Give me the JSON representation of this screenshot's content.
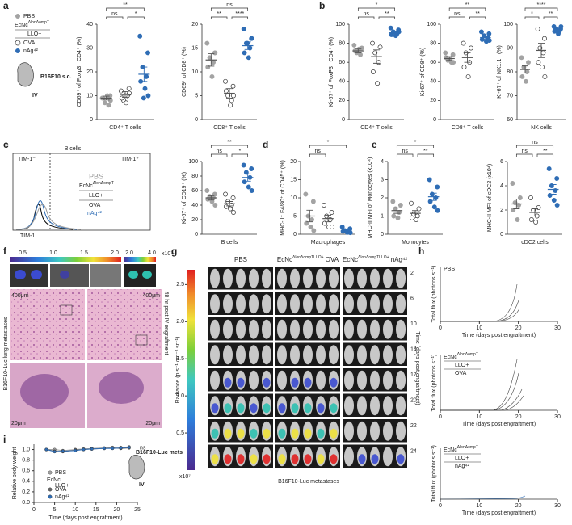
{
  "panel_labels": [
    "a",
    "b",
    "c",
    "d",
    "e",
    "f",
    "g",
    "h",
    "i"
  ],
  "groups": [
    {
      "name": "PBS",
      "color": "#a3a3a3"
    },
    {
      "name": "OVA",
      "color": "#ffffff"
    },
    {
      "name": "nAg⁴²",
      "color": "#2f6db5"
    }
  ],
  "legend": {
    "strain": "EcNc",
    "strain_sup": "ΔlonΔompT",
    "plasmid": "LLO+",
    "tumor": "B16F10 s.c.",
    "route": "IV"
  },
  "chart_data": [
    {
      "type": "dot",
      "ylabel": "CD69⁺ of Foxp3⁻ CD4⁺ (%)",
      "category": "CD4⁺ T cells",
      "ylim": [
        0,
        40
      ],
      "yticks": [
        0,
        10,
        20,
        30,
        40
      ],
      "significance": {
        "all": "**",
        "left": "ns",
        "right": "*"
      },
      "series": [
        {
          "values": [
            9,
            10,
            7,
            6,
            9,
            10,
            8
          ],
          "mean": 9,
          "sem": 0.8
        },
        {
          "values": [
            12,
            13,
            8,
            10,
            9,
            7,
            11,
            10
          ],
          "mean": 10.5,
          "sem": 1.2
        },
        {
          "values": [
            35,
            28,
            22,
            18,
            16,
            13,
            10,
            9
          ],
          "mean": 19,
          "sem": 3
        }
      ]
    },
    {
      "type": "dot",
      "ylabel": "CD69⁺ of CD8⁺ (%)",
      "category": "CD8⁺ T cells",
      "ylim": [
        0,
        20
      ],
      "yticks": [
        0,
        5,
        10,
        15,
        20
      ],
      "significance": {
        "all": "ns",
        "left": "**",
        "right": "****"
      },
      "series": [
        {
          "values": [
            16,
            14,
            13,
            12,
            11,
            9,
            14
          ],
          "mean": 12.5,
          "sem": 1.3
        },
        {
          "values": [
            8,
            7,
            5,
            4,
            6,
            3,
            5
          ],
          "mean": 5.5,
          "sem": 1
        },
        {
          "values": [
            19,
            17,
            16,
            15,
            14,
            13,
            17,
            16
          ],
          "mean": 15.5,
          "sem": 0.8
        }
      ]
    },
    {
      "type": "dot",
      "ylabel": "Ki-67⁺ of FoxP3⁻ CD4⁺ (%)",
      "category": "CD4⁺ T cells",
      "ylim": [
        0,
        100
      ],
      "yticks": [
        0,
        20,
        40,
        60,
        80,
        100
      ],
      "significance": {
        "all": "*",
        "left": "ns",
        "right": "**"
      },
      "series": [
        {
          "values": [
            78,
            75,
            70,
            68,
            72,
            74
          ],
          "mean": 72,
          "sem": 2
        },
        {
          "values": [
            80,
            76,
            70,
            60,
            50,
            38
          ],
          "mean": 66,
          "sem": 7
        },
        {
          "values": [
            96,
            94,
            92,
            90,
            89,
            88,
            92
          ],
          "mean": 91,
          "sem": 1
        }
      ]
    },
    {
      "type": "dot",
      "ylabel": "Ki-67⁺ of CD8⁺ (%)",
      "category": "CD8⁺ T cells",
      "ylim": [
        0,
        100
      ],
      "yticks": [
        0,
        20,
        40,
        60,
        80,
        100
      ],
      "significance": {
        "all": "**",
        "left": "ns",
        "right": "**"
      },
      "series": [
        {
          "values": [
            70,
            68,
            62,
            60,
            65,
            63,
            60
          ],
          "mean": 64,
          "sem": 2
        },
        {
          "values": [
            80,
            75,
            70,
            60,
            55,
            45
          ],
          "mean": 65,
          "sem": 5
        },
        {
          "values": [
            92,
            90,
            88,
            86,
            84,
            82,
            83
          ],
          "mean": 86,
          "sem": 1.5
        }
      ]
    },
    {
      "type": "dot",
      "ylabel": "Ki-67⁺ of NK1.1⁺ (%)",
      "category": "NK cells",
      "ylim": [
        60,
        100
      ],
      "yticks": [
        60,
        70,
        80,
        90,
        100
      ],
      "significance": {
        "all": "****",
        "left": "*",
        "right": "**"
      },
      "series": [
        {
          "values": [
            86,
            84,
            82,
            80,
            78,
            76
          ],
          "mean": 81,
          "sem": 1.5
        },
        {
          "values": [
            98,
            94,
            90,
            88,
            84,
            82,
            78
          ],
          "mean": 89,
          "sem": 3
        },
        {
          "values": [
            99,
            98,
            98,
            97,
            97,
            96,
            99
          ],
          "mean": 98,
          "sem": 0.4
        }
      ]
    },
    {
      "type": "dot",
      "ylabel": "Ki-67⁺ of CD19⁺ (%)",
      "category": "B cells",
      "ylim": [
        0,
        100
      ],
      "yticks": [
        0,
        20,
        40,
        60,
        80,
        100
      ],
      "significance": {
        "all": "**",
        "left": "ns",
        "right": "*"
      },
      "series": [
        {
          "values": [
            60,
            55,
            52,
            50,
            48,
            45,
            40
          ],
          "mean": 50,
          "sem": 3
        },
        {
          "values": [
            55,
            50,
            45,
            40,
            38,
            35,
            30
          ],
          "mean": 42,
          "sem": 3
        },
        {
          "values": [
            95,
            90,
            85,
            78,
            72,
            65,
            60
          ],
          "mean": 78,
          "sem": 5
        }
      ]
    },
    {
      "type": "dot",
      "ylabel": "MHC-II⁺ F4/80⁺ of CD45⁺ (%)",
      "category": "Macrophages",
      "ylim": [
        0,
        20
      ],
      "yticks": [
        0,
        5,
        10,
        15,
        20
      ],
      "significance": {
        "all": "*",
        "left": "ns"
      },
      "series": [
        {
          "values": [
            11,
            9,
            5,
            4,
            3,
            2,
            1
          ],
          "mean": 5,
          "sem": 1.6
        },
        {
          "values": [
            8,
            6,
            5,
            4,
            3,
            2,
            2
          ],
          "mean": 4.3,
          "sem": 0.9
        },
        {
          "values": [
            2,
            1.5,
            1,
            1,
            0.8,
            0.5,
            0.4
          ],
          "mean": 1,
          "sem": 0.2
        }
      ]
    },
    {
      "type": "dot",
      "ylabel": "MHC-II MFI of Monocytes (x10⁴)",
      "category": "Monocytes",
      "ylim": [
        0,
        4
      ],
      "yticks": [
        0,
        1,
        2,
        3,
        4
      ],
      "significance": {
        "all": "*",
        "left": "ns",
        "right": "**"
      },
      "series": [
        {
          "values": [
            1.8,
            1.6,
            1.4,
            1.2,
            1.0,
            0.9
          ],
          "mean": 1.3,
          "sem": 0.15
        },
        {
          "values": [
            1.7,
            1.4,
            1.1,
            1.0,
            0.9,
            0.8
          ],
          "mean": 1.15,
          "sem": 0.15
        },
        {
          "values": [
            3.0,
            2.6,
            2.2,
            2.0,
            1.8,
            1.5,
            1.3
          ],
          "mean": 2.06,
          "sem": 0.2
        }
      ]
    },
    {
      "type": "dot",
      "ylabel": "MHC-II MFI of cDC2 (x10⁴)",
      "category": "cDC2 cells",
      "ylim": [
        0,
        6
      ],
      "yticks": [
        0,
        2,
        4,
        6
      ],
      "significance": {
        "all": "ns",
        "left": "ns",
        "right": "**"
      },
      "series": [
        {
          "values": [
            4.2,
            3.0,
            2.6,
            2.4,
            2.0,
            1.2
          ],
          "mean": 2.5,
          "sem": 0.4
        },
        {
          "values": [
            3.0,
            2.2,
            2.0,
            1.5,
            1.2,
            1.0
          ],
          "mean": 1.8,
          "sem": 0.3
        },
        {
          "values": [
            5.4,
            4.6,
            4.0,
            3.6,
            3.2,
            2.8,
            2.4
          ],
          "mean": 3.7,
          "sem": 0.4
        }
      ]
    },
    {
      "type": "line",
      "xlabel": "Time (days post engraftment)",
      "ylabel": "Relative body weight",
      "annotation": "ns",
      "xlim": [
        0,
        25
      ],
      "xticks": [
        0,
        5,
        10,
        15,
        20,
        25
      ],
      "ylim": [
        0,
        1.1
      ],
      "yticks": [
        {
          "value": 0,
          "label": "0.0"
        },
        {
          "value": 0.2,
          "label": "0.2"
        },
        {
          "value": 0.4,
          "label": "0.4"
        },
        {
          "value": 0.6,
          "label": "0.6"
        },
        {
          "value": 0.8,
          "label": "0.8"
        },
        {
          "value": 1,
          "label": "1.0"
        }
      ],
      "x": [
        3,
        5,
        7,
        10,
        12,
        14,
        17,
        19,
        21,
        23
      ],
      "series": [
        {
          "name": "PBS",
          "color": "#a3a3a3",
          "values": [
            1,
            1,
            0.98,
            1,
            1.01,
            1.02,
            1.03,
            1.04,
            1.04,
            1.05
          ]
        },
        {
          "name": "OVA",
          "color": "#666666",
          "values": [
            1,
            0.97,
            0.96,
            0.99,
            1,
            1.01,
            1.02,
            1.03,
            1.02,
            1.03
          ]
        },
        {
          "name": "nAg⁴²",
          "color": "#2f6db5",
          "values": [
            1,
            0.96,
            0.97,
            0.98,
            1,
            1.01,
            1.02,
            1.02,
            1.03,
            1.04
          ]
        }
      ],
      "tumor": "B16F10-Luc mets",
      "route": "IV"
    },
    {
      "type": "flux",
      "ylabel": "Total flux (photons s⁻¹)",
      "xlabel": "Time (days post engraftment)",
      "xlim": [
        0,
        30
      ],
      "xticks": [
        0,
        10,
        20,
        30
      ],
      "title": "PBS"
    },
    {
      "type": "flux",
      "ylabel": "Total flux (photons s⁻¹)",
      "xlabel": "Time (days post engraftment)",
      "xlim": [
        0,
        30
      ],
      "xticks": [
        0,
        10,
        20,
        30
      ],
      "title": {
        "strain": "EcNc",
        "sup": "ΔlonΔompT",
        "plasmid": "LLO+",
        "antigen": "OVA"
      }
    },
    {
      "type": "flux",
      "ylabel": "Total flux (photons s⁻¹)",
      "xlabel": "Time (days post engraftment)",
      "xlim": [
        0,
        30
      ],
      "xticks": [
        0,
        10,
        20,
        30
      ],
      "title": {
        "strain": "EcNc",
        "sup": "ΔlonΔompT",
        "plasmid": "LLO+",
        "antigen": "nAg⁴²"
      }
    }
  ],
  "flow": {
    "title": "B cells",
    "neg": "TIM-1⁻",
    "pos": "TIM-1⁺",
    "xlabel": "TIM-1"
  },
  "histology": {
    "colorbar_ticks": [
      "0.5",
      "1.0",
      "1.5",
      "2.0"
    ],
    "colorbar2_ticks": [
      "2.0",
      "4.0"
    ],
    "colorbar_unit": "x10⁷",
    "scale_low": "400μm",
    "scale_high": "20μm",
    "left_label": "B16F10-Luc lung metastases",
    "right_label": "48 hr post IV engraftment"
  },
  "ivis": {
    "columns": [
      {
        "main": "PBS"
      },
      {
        "main": "EcNc",
        "sup": "ΔlonΔompTLLO+",
        "suffix": " OVA"
      },
      {
        "main": "EcNc",
        "sup": "ΔlonΔompTLLO+",
        "suffix": " nAg⁴²"
      }
    ],
    "rows": [
      "2",
      "6",
      "10",
      "14",
      "17",
      "20",
      "22",
      "24"
    ],
    "colorbar_label": "Radiance (p s⁻¹ cm⁻² sr⁻¹)",
    "colorbar_lim": [
      0,
      2.7
    ],
    "colorbar_ticks": [
      {
        "value": 0.5,
        "label": "0.5"
      },
      {
        "value": 1,
        "label": "1.0"
      },
      {
        "value": 1.5,
        "label": "1.5"
      },
      {
        "value": 2,
        "label": "2.0"
      },
      {
        "value": 2.5,
        "label": "2.5"
      }
    ],
    "colorbar_unit": "x10⁷",
    "row_axis": "Time (days post engraftment)",
    "footer": "B16F10-Luc metastases"
  }
}
